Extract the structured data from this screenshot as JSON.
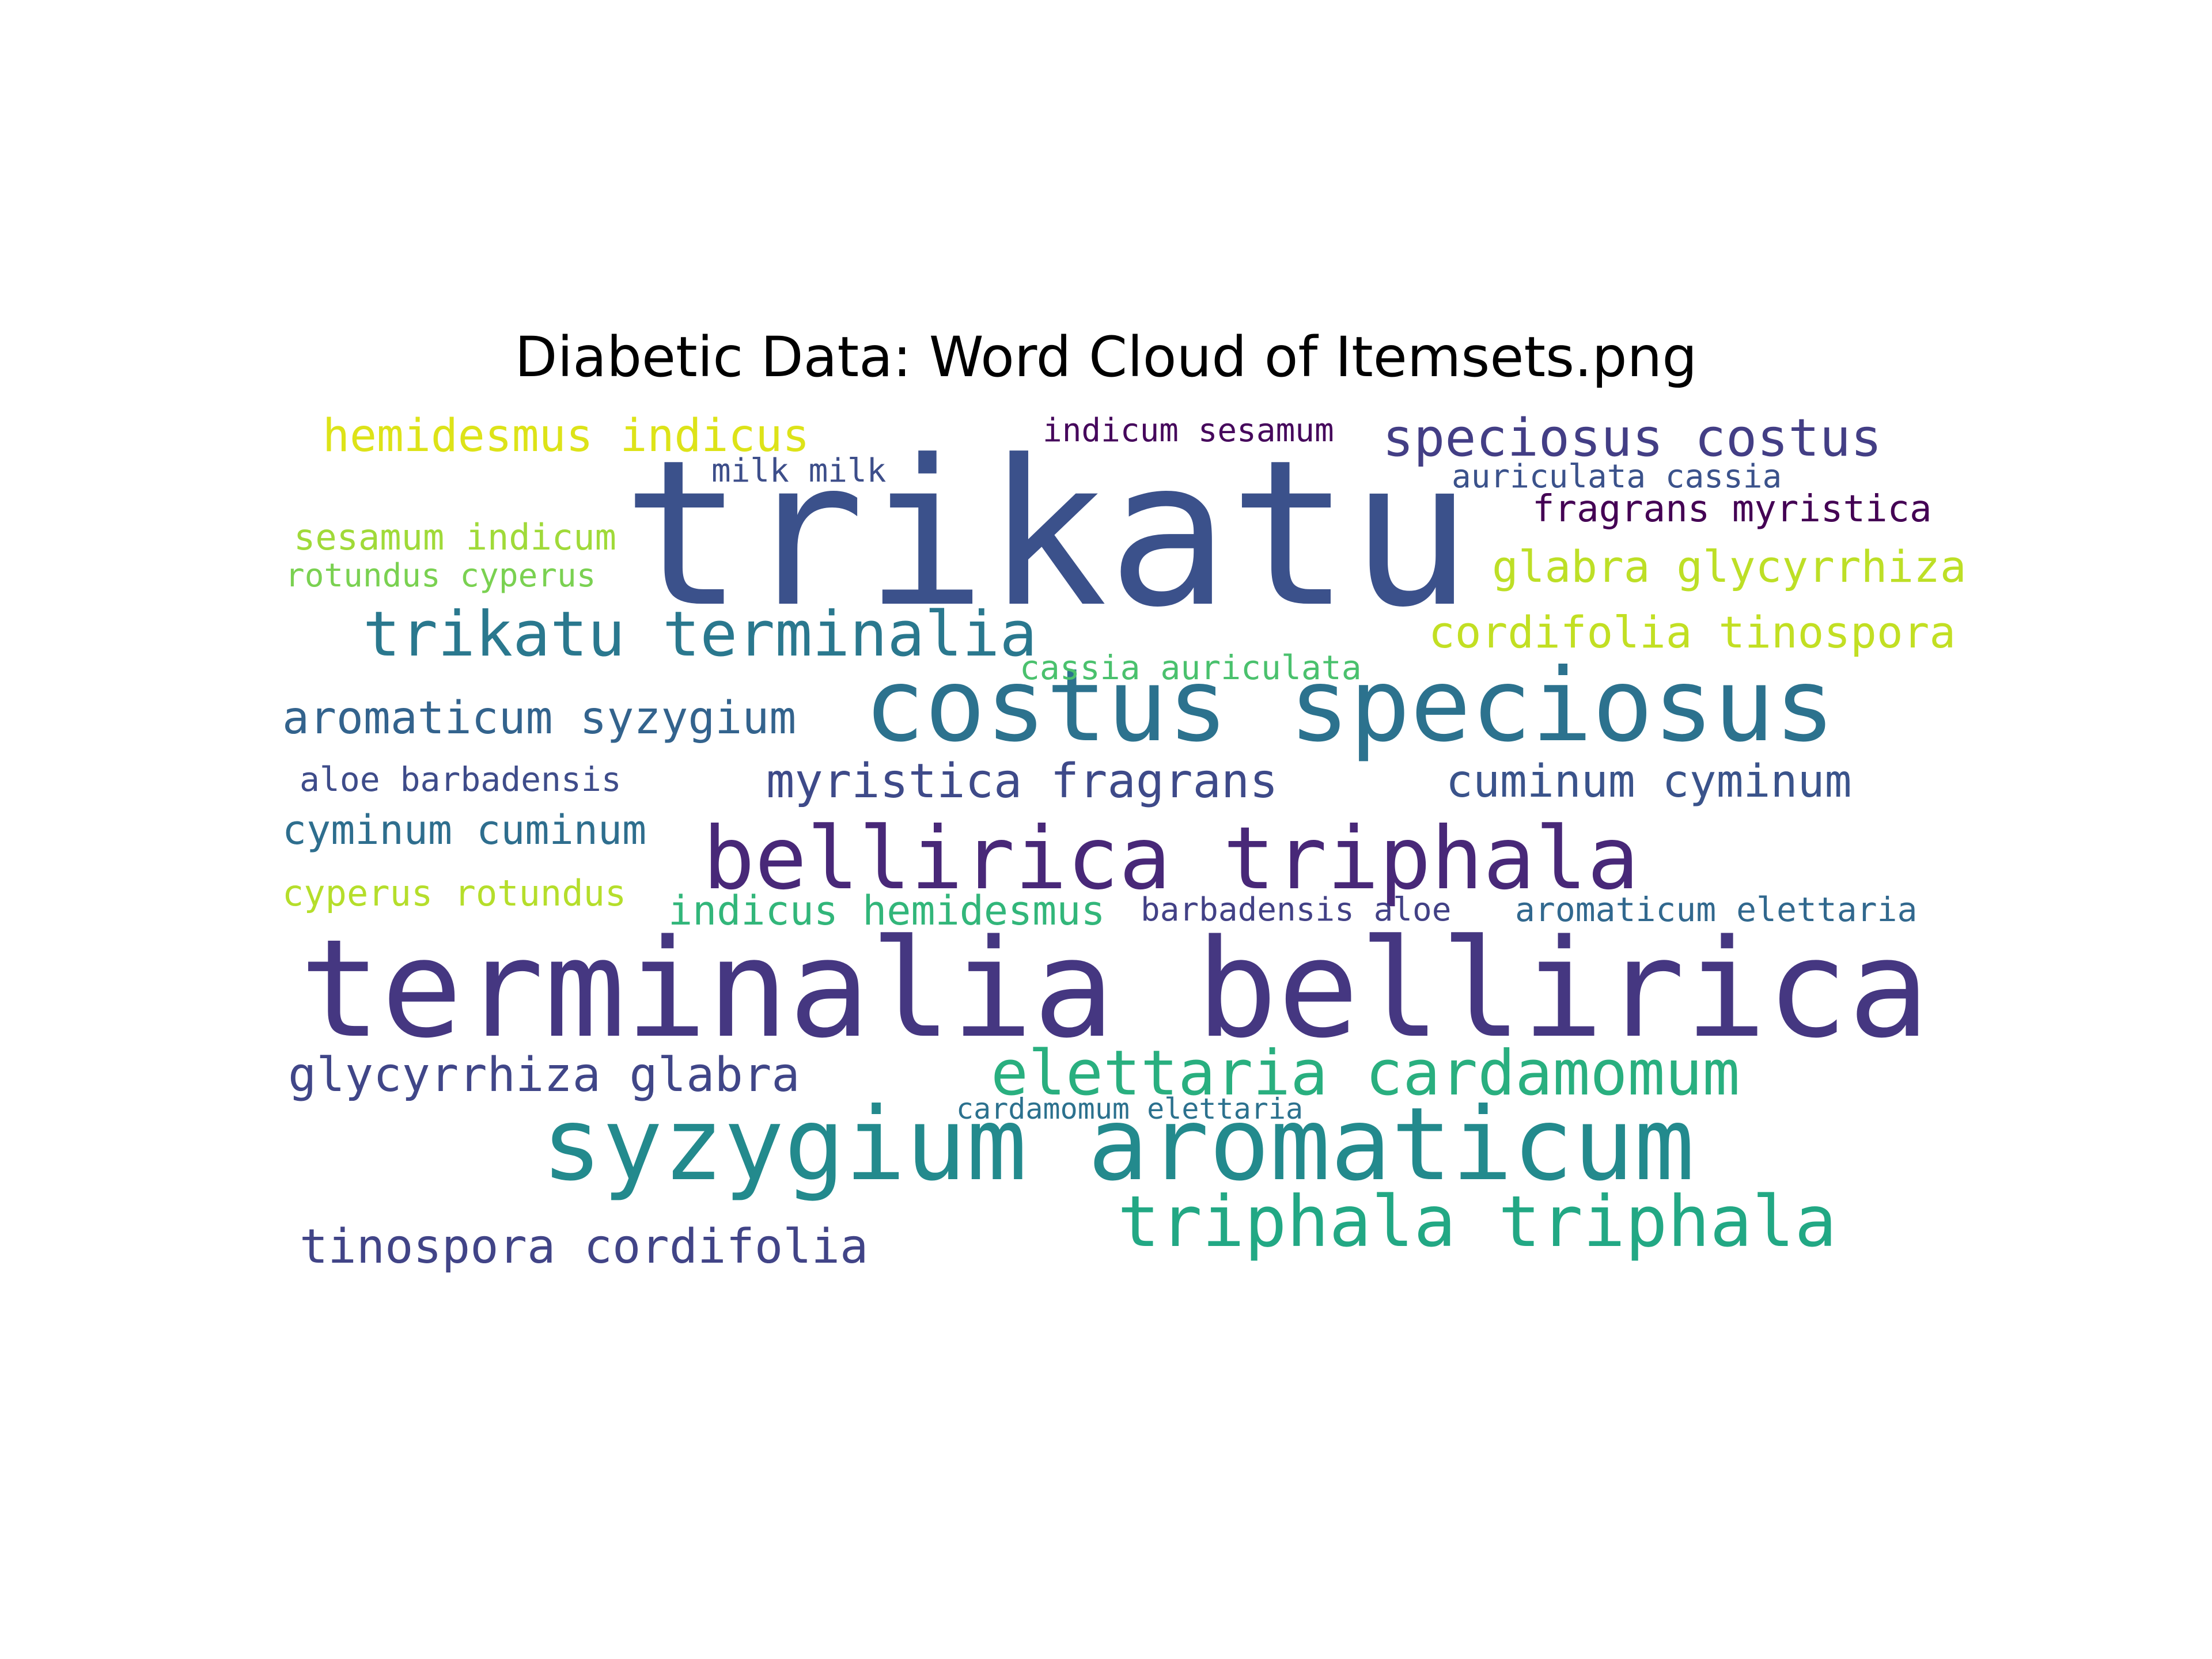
{
  "chart_data": {
    "type": "wordcloud",
    "title": "Diabetic Data: Word Cloud of Itemsets.png",
    "words": [
      {
        "text": "trikatu",
        "weight": 1.0,
        "color": "#3b518b"
      },
      {
        "text": "terminalia bellirica",
        "weight": 0.76,
        "color": "#453781"
      },
      {
        "text": "costus speciosus",
        "weight": 0.58,
        "color": "#2c728e"
      },
      {
        "text": "syzygium aromaticum",
        "weight": 0.58,
        "color": "#238a8d"
      },
      {
        "text": "bellirica triphala",
        "weight": 0.48,
        "color": "#482878"
      },
      {
        "text": "triphala triphala",
        "weight": 0.39,
        "color": "#22a884"
      },
      {
        "text": "elettaria cardamomum",
        "weight": 0.36,
        "color": "#29af7f"
      },
      {
        "text": "trikatu terminalia",
        "weight": 0.36,
        "color": "#2a788e"
      },
      {
        "text": "speciosus costus",
        "weight": 0.3,
        "color": "#433e85"
      },
      {
        "text": "myristica fragrans",
        "weight": 0.27,
        "color": "#3e4a89"
      },
      {
        "text": "glycyrrhiza glabra",
        "weight": 0.27,
        "color": "#404688"
      },
      {
        "text": "tinospora cordifolia",
        "weight": 0.27,
        "color": "#414487"
      },
      {
        "text": "cuminum cyminum",
        "weight": 0.25,
        "color": "#3a538b"
      },
      {
        "text": "aromaticum syzygium",
        "weight": 0.25,
        "color": "#33638d"
      },
      {
        "text": "hemidesmus indicus",
        "weight": 0.25,
        "color": "#dde318"
      },
      {
        "text": "glabra glycyrrhiza",
        "weight": 0.25,
        "color": "#bddf26"
      },
      {
        "text": "cordifolia tinospora",
        "weight": 0.25,
        "color": "#c2df23"
      },
      {
        "text": "cyminum cuminum",
        "weight": 0.22,
        "color": "#2e6e8e"
      },
      {
        "text": "indicus hemidesmus",
        "weight": 0.22,
        "color": "#32b67a"
      },
      {
        "text": "fragrans myristica",
        "weight": 0.22,
        "color": "#440154"
      },
      {
        "text": "sesamum indicum",
        "weight": 0.2,
        "color": "#a0da39"
      },
      {
        "text": "cyperus rotundus",
        "weight": 0.2,
        "color": "#b5de2b"
      },
      {
        "text": "aloe barbadensis",
        "weight": 0.2,
        "color": "#3e4c8a"
      },
      {
        "text": "aromaticum elettaria",
        "weight": 0.2,
        "color": "#31688e"
      },
      {
        "text": "rotundus cyperus",
        "weight": 0.18,
        "color": "#7ad151"
      },
      {
        "text": "cassia auriculata",
        "weight": 0.18,
        "color": "#4ac16d"
      },
      {
        "text": "barbadensis aloe",
        "weight": 0.18,
        "color": "#424186"
      },
      {
        "text": "indicum sesamum",
        "weight": 0.18,
        "color": "#46085c"
      },
      {
        "text": "milk milk",
        "weight": 0.18,
        "color": "#3d4e8a"
      },
      {
        "text": "auriculata cassia",
        "weight": 0.18,
        "color": "#3b528b"
      },
      {
        "text": "cardamomum elettaria",
        "weight": 0.15,
        "color": "#2c718e"
      }
    ]
  }
}
